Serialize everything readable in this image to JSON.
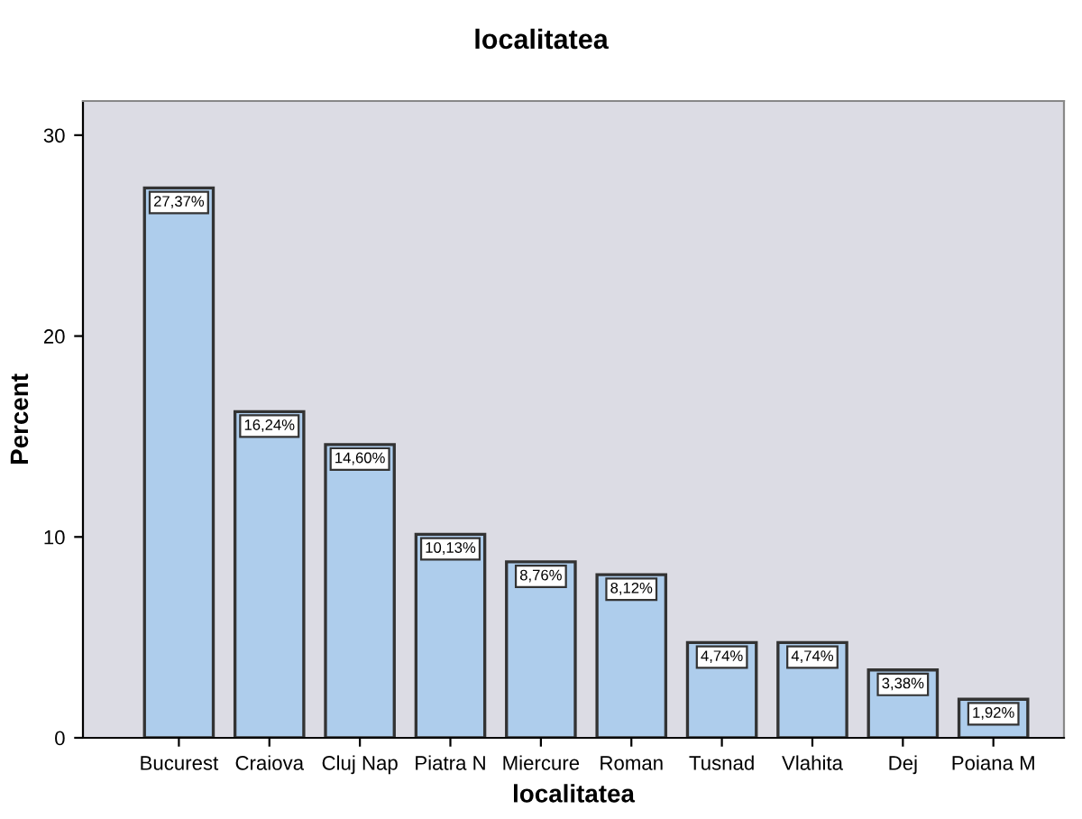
{
  "chart_data": {
    "type": "bar",
    "title": "localitatea",
    "xlabel": "localitatea",
    "ylabel": "Percent",
    "categories": [
      "Bucurest",
      "Craiova",
      "Cluj Nap",
      "Piatra N",
      "Miercure",
      "Roman",
      "Tusnad",
      "Vlahita",
      "Dej",
      "Poiana M"
    ],
    "values": [
      27.37,
      16.24,
      14.6,
      10.13,
      8.76,
      8.12,
      4.74,
      4.74,
      3.38,
      1.92
    ],
    "value_labels": [
      "27,37%",
      "16,24%",
      "14,60%",
      "10,13%",
      "8,76%",
      "8,12%",
      "4,74%",
      "4,74%",
      "3,38%",
      "1,92%"
    ],
    "color": "#aecdec",
    "ylim": [
      0,
      31.7
    ],
    "yticks": [
      0,
      10,
      20,
      30
    ],
    "grid": false,
    "legend": false
  }
}
